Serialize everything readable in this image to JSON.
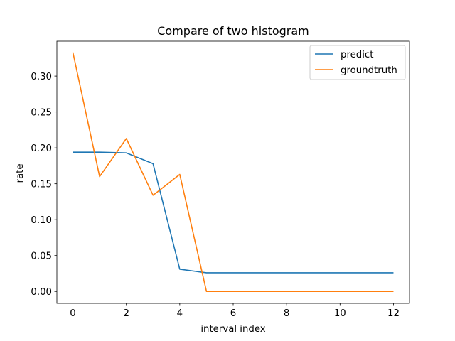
{
  "chart_data": {
    "type": "line",
    "title": "Compare of two histogram",
    "xlabel": "interval index",
    "ylabel": "rate",
    "xlim": [
      -0.6,
      12.6
    ],
    "ylim": [
      -0.0166,
      0.3486
    ],
    "xticks": [
      0,
      2,
      4,
      6,
      8,
      10,
      12
    ],
    "yticks": [
      0.0,
      0.05,
      0.1,
      0.15,
      0.2,
      0.25,
      0.3
    ],
    "ytick_labels": [
      "0.00",
      "0.05",
      "0.10",
      "0.15",
      "0.20",
      "0.25",
      "0.30"
    ],
    "x": [
      0,
      1,
      2,
      3,
      4,
      5,
      6,
      7,
      8,
      9,
      10,
      11,
      12
    ],
    "grid": false,
    "legend_position": "top-right",
    "series": [
      {
        "name": "predict",
        "color": "#1f77b4",
        "values": [
          0.194,
          0.194,
          0.193,
          0.178,
          0.031,
          0.026,
          0.026,
          0.026,
          0.026,
          0.026,
          0.026,
          0.026,
          0.026
        ]
      },
      {
        "name": "groundtruth",
        "color": "#ff7f0e",
        "values": [
          0.333,
          0.16,
          0.213,
          0.134,
          0.163,
          0.0,
          0.0,
          0.0,
          0.0,
          0.0,
          0.0,
          0.0,
          0.0
        ]
      }
    ]
  }
}
